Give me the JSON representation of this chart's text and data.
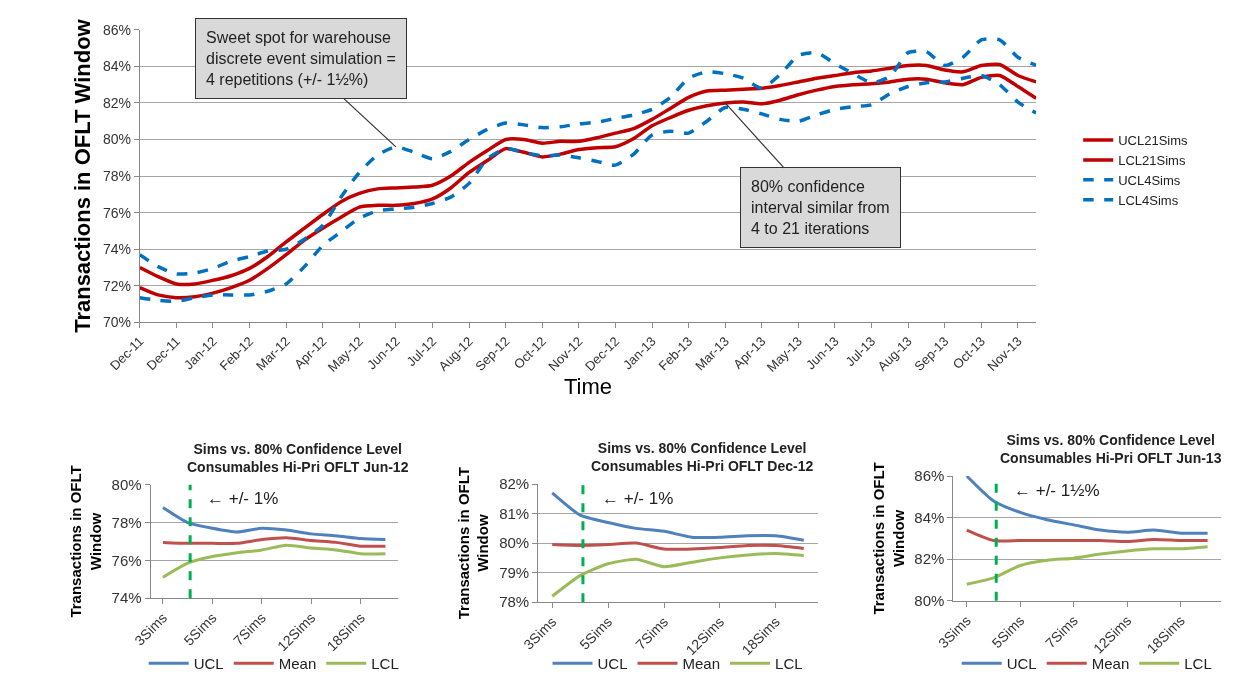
{
  "chart_data": [
    {
      "type": "line",
      "xlabel": "Time",
      "ylabel": "Transactions in OFLT Window",
      "categories": [
        "Dec-11",
        null,
        "Dec-11",
        null,
        "Jan-12",
        null,
        "Feb-12",
        null,
        "Mar-12",
        null,
        "Apr-12",
        null,
        "May-12",
        null,
        "Jun-12",
        null,
        "Jul-12",
        null,
        "Aug-12",
        null,
        "Sep-12",
        null,
        "Oct-12",
        null,
        "Nov-12",
        null,
        "Dec-12",
        null,
        "Jan-13",
        null,
        "Feb-13",
        null,
        "Mar-13",
        null,
        "Apr-13",
        null,
        "May-13",
        null,
        "Jun-13",
        null,
        "Jul-13",
        null,
        "Aug-13",
        null,
        "Sep-13",
        null,
        "Oct-13",
        null,
        "Nov-13",
        null
      ],
      "series": [
        {
          "name": "UCL21Sims",
          "color": "#c00000",
          "line_style": "solid",
          "values": [
            73.0,
            72.5,
            72.1,
            72.1,
            72.3,
            72.55,
            72.95,
            73.6,
            74.4,
            75.15,
            75.9,
            76.6,
            77.05,
            77.3,
            77.35,
            77.4,
            77.5,
            78.0,
            78.75,
            79.4,
            80.0,
            80.0,
            79.8,
            79.9,
            79.9,
            80.1,
            80.35,
            80.6,
            81.1,
            81.7,
            82.3,
            82.65,
            82.7,
            82.75,
            82.8,
            82.95,
            83.15,
            83.35,
            83.5,
            83.65,
            83.75,
            83.9,
            84.05,
            84.05,
            83.8,
            83.7,
            84.05,
            84.1,
            83.5,
            83.15
          ]
        },
        {
          "name": "LCL21Sims",
          "color": "#c00000",
          "line_style": "solid",
          "values": [
            71.9,
            71.5,
            71.35,
            71.4,
            71.6,
            71.9,
            72.3,
            72.95,
            73.7,
            74.5,
            75.15,
            75.75,
            76.3,
            76.4,
            76.4,
            76.5,
            76.75,
            77.35,
            78.2,
            78.85,
            79.5,
            79.3,
            79.05,
            79.2,
            79.45,
            79.55,
            79.6,
            80.05,
            80.75,
            81.2,
            81.6,
            81.85,
            82.0,
            82.05,
            81.95,
            82.15,
            82.45,
            82.7,
            82.9,
            83.0,
            83.05,
            83.15,
            83.3,
            83.3,
            83.1,
            83.0,
            83.4,
            83.5,
            82.9,
            82.25
          ]
        },
        {
          "name": "UCL4Sims",
          "color": "#0070c0",
          "line_style": "dashed",
          "values": [
            73.7,
            73.05,
            72.65,
            72.7,
            72.95,
            73.35,
            73.6,
            73.9,
            74.0,
            74.55,
            75.3,
            76.85,
            78.2,
            79.15,
            79.6,
            79.3,
            78.95,
            79.35,
            80.0,
            80.55,
            80.9,
            80.8,
            80.65,
            80.7,
            80.85,
            80.95,
            81.15,
            81.35,
            81.65,
            82.3,
            83.35,
            83.7,
            83.6,
            83.35,
            82.8,
            83.55,
            84.6,
            84.75,
            84.15,
            83.6,
            83.1,
            83.45,
            84.75,
            84.8,
            84.05,
            84.5,
            85.45,
            85.45,
            84.5,
            84.05
          ]
        },
        {
          "name": "LCL4Sims",
          "color": "#0070c0",
          "line_style": "dashed",
          "values": [
            71.35,
            71.2,
            71.15,
            71.35,
            71.5,
            71.5,
            71.5,
            71.7,
            72.1,
            73.05,
            74.2,
            74.95,
            75.7,
            76.1,
            76.2,
            76.3,
            76.5,
            76.85,
            77.6,
            78.95,
            79.5,
            79.3,
            79.1,
            79.15,
            79.0,
            78.8,
            78.6,
            79.2,
            80.25,
            80.45,
            80.35,
            81.0,
            81.75,
            81.65,
            81.4,
            81.1,
            81.0,
            81.35,
            81.65,
            81.8,
            81.9,
            82.5,
            82.9,
            83.1,
            83.15,
            83.35,
            83.5,
            83.0,
            82.05,
            81.45
          ]
        }
      ],
      "ylim": [
        70,
        86
      ],
      "yticks": [
        {
          "value": 70,
          "label": "70%"
        },
        {
          "value": 72,
          "label": "72%"
        },
        {
          "value": 74,
          "label": "74%"
        },
        {
          "value": 76,
          "label": "76%"
        },
        {
          "value": 78,
          "label": "78%"
        },
        {
          "value": 80,
          "label": "80%"
        },
        {
          "value": 82,
          "label": "82%"
        },
        {
          "value": 84,
          "label": "84%"
        },
        {
          "value": 86,
          "label": "86%"
        }
      ],
      "grid": "y",
      "legend": "right",
      "marker": "none",
      "annotations": [
        {
          "text": "Sweet spot for warehouse\ndiscrete event simulation =\n4 repetitions (+/- 1½%)",
          "x": "Jun-12",
          "y": 79.6
        },
        {
          "text": "80% confidence\ninterval similar from\n4 to 21 iterations",
          "x": "Mar-13",
          "y": 82.0
        }
      ]
    },
    {
      "type": "line",
      "title": "Sims vs. 80% Confidence Level\nConsumables Hi-Pri OFLT Jun-12",
      "ylabel": "Transactions in OFLT\nWindow",
      "categories": [
        "3Sims",
        null,
        "5Sims",
        null,
        "7Sims",
        null,
        "12Sims",
        null,
        "18Sims",
        null
      ],
      "series": [
        {
          "name": "UCL",
          "color": "#4f81bd",
          "values": [
            78.8,
            78.0,
            77.7,
            77.5,
            77.7,
            77.6,
            77.4,
            77.3,
            77.15,
            77.1
          ]
        },
        {
          "name": "Mean",
          "color": "#c0504d",
          "values": [
            76.95,
            76.9,
            76.9,
            76.9,
            77.1,
            77.2,
            77.05,
            76.95,
            76.75,
            76.75
          ]
        },
        {
          "name": "LCL",
          "color": "#9bbb59",
          "values": [
            75.1,
            75.85,
            76.2,
            76.4,
            76.55,
            76.8,
            76.65,
            76.55,
            76.35,
            76.35
          ]
        }
      ],
      "ylim": [
        74,
        80
      ],
      "yticks": [
        {
          "value": 74,
          "label": "74%"
        },
        {
          "value": 76,
          "label": "76%"
        },
        {
          "value": 78,
          "label": "78%"
        },
        {
          "value": 80,
          "label": "80%"
        }
      ],
      "grid": "y",
      "legend": "bottom",
      "marker": "none",
      "line_style": "solid",
      "annotations": [
        "← +/- 1%"
      ]
    },
    {
      "type": "line",
      "title": "Sims vs. 80% Confidence Level\nConsumables Hi-Pri OFLT Dec-12",
      "ylabel": "Transactions in OFLT\nWindow",
      "categories": [
        "3Sims",
        null,
        "5Sims",
        null,
        "7Sims",
        null,
        "12Sims",
        null,
        "18Sims",
        null
      ],
      "series": [
        {
          "name": "UCL",
          "color": "#4f81bd",
          "values": [
            81.7,
            80.95,
            80.7,
            80.5,
            80.4,
            80.2,
            80.2,
            80.25,
            80.25,
            80.1
          ]
        },
        {
          "name": "Mean",
          "color": "#c0504d",
          "values": [
            79.95,
            79.92,
            79.95,
            80.0,
            79.8,
            79.8,
            79.85,
            79.92,
            79.92,
            79.82
          ]
        },
        {
          "name": "LCL",
          "color": "#9bbb59",
          "values": [
            78.2,
            78.9,
            79.3,
            79.45,
            79.2,
            79.35,
            79.5,
            79.6,
            79.65,
            79.58
          ]
        }
      ],
      "ylim": [
        78,
        82
      ],
      "yticks": [
        {
          "value": 78,
          "label": "78%"
        },
        {
          "value": 79,
          "label": "79%"
        },
        {
          "value": 80,
          "label": "80%"
        },
        {
          "value": 81,
          "label": "81%"
        },
        {
          "value": 82,
          "label": "82%"
        }
      ],
      "grid": "y",
      "legend": "bottom",
      "marker": "none",
      "line_style": "solid",
      "annotations": [
        "← +/- 1%"
      ]
    },
    {
      "type": "line",
      "title": "Sims vs. 80% Confidence Level\nConsumables Hi-Pri OFLT Jun-13",
      "ylabel": "Transactions in OFLT\nWindow",
      "categories": [
        "3Sims",
        null,
        "5Sims",
        null,
        "7Sims",
        null,
        "12Sims",
        null,
        "18Sims",
        null
      ],
      "series": [
        {
          "name": "UCL",
          "color": "#4f81bd",
          "values": [
            86.0,
            84.8,
            84.25,
            83.9,
            83.65,
            83.4,
            83.3,
            83.4,
            83.25,
            83.25
          ]
        },
        {
          "name": "Mean",
          "color": "#c0504d",
          "values": [
            83.4,
            82.9,
            82.9,
            82.9,
            82.9,
            82.9,
            82.85,
            82.95,
            82.9,
            82.9
          ]
        },
        {
          "name": "LCL",
          "color": "#9bbb59",
          "values": [
            80.8,
            81.1,
            81.7,
            81.95,
            82.05,
            82.25,
            82.4,
            82.5,
            82.5,
            82.6
          ]
        }
      ],
      "ylim": [
        80,
        86
      ],
      "yticks": [
        {
          "value": 80,
          "label": "80%"
        },
        {
          "value": 82,
          "label": "82%"
        },
        {
          "value": 84,
          "label": "84%"
        },
        {
          "value": 86,
          "label": "86%"
        }
      ],
      "grid": "y",
      "legend": "bottom",
      "marker": "none",
      "line_style": "solid",
      "annotations": [
        "← +/- 1½%"
      ]
    }
  ]
}
